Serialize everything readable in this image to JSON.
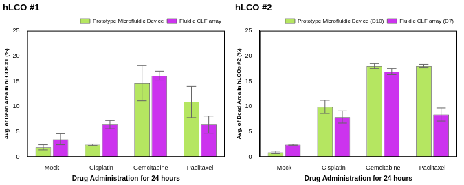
{
  "chart_data": [
    {
      "type": "bar",
      "title": "hLCO #1",
      "x_label": "Drug Administration for 24 hours",
      "y_label": "Avg. of Dead Area in hLCOs #1 (%)",
      "categories": [
        "Mock",
        "Cisplatin",
        "Gemcitabine",
        "Paclitaxel"
      ],
      "series": [
        {
          "name": "Prototype Microfluidic Device",
          "color": "#b5e661",
          "values": [
            1.9,
            2.4,
            14.6,
            10.9
          ],
          "errors": [
            0.5,
            0.15,
            3.5,
            3.1
          ]
        },
        {
          "name": "Fluidic CLF array",
          "color": "#cc33ee",
          "values": [
            3.5,
            6.4,
            16.1,
            6.4
          ],
          "errors": [
            1.1,
            0.8,
            0.9,
            1.7
          ]
        }
      ],
      "ylim": [
        0,
        25
      ],
      "yticks": [
        0,
        5,
        10,
        15,
        20,
        25
      ],
      "grid": false,
      "legend": "upper right"
    },
    {
      "type": "bar",
      "title": "hLCO #2",
      "x_label": "Drug Administration for 24 hours",
      "y_label": "Avg. of Dead Area in hLCOs #2 (%)",
      "categories": [
        "Mock",
        "Cisplatin",
        "Gemcitabine",
        "Paclitaxel"
      ],
      "series": [
        {
          "name": "Prototype Microfluidic Device (D10)",
          "color": "#b5e661",
          "values": [
            0.9,
            9.9,
            18.0,
            18.0
          ],
          "errors": [
            0.25,
            1.3,
            0.5,
            0.35
          ]
        },
        {
          "name": "Fluidic CLF array (D7)",
          "color": "#cc33ee",
          "values": [
            2.4,
            7.9,
            16.9,
            8.4
          ],
          "errors": [
            0.1,
            1.2,
            0.6,
            1.3
          ]
        }
      ],
      "ylim": [
        0,
        25
      ],
      "yticks": [
        0,
        5,
        10,
        15,
        20,
        25
      ],
      "grid": false,
      "legend": "upper right"
    }
  ]
}
